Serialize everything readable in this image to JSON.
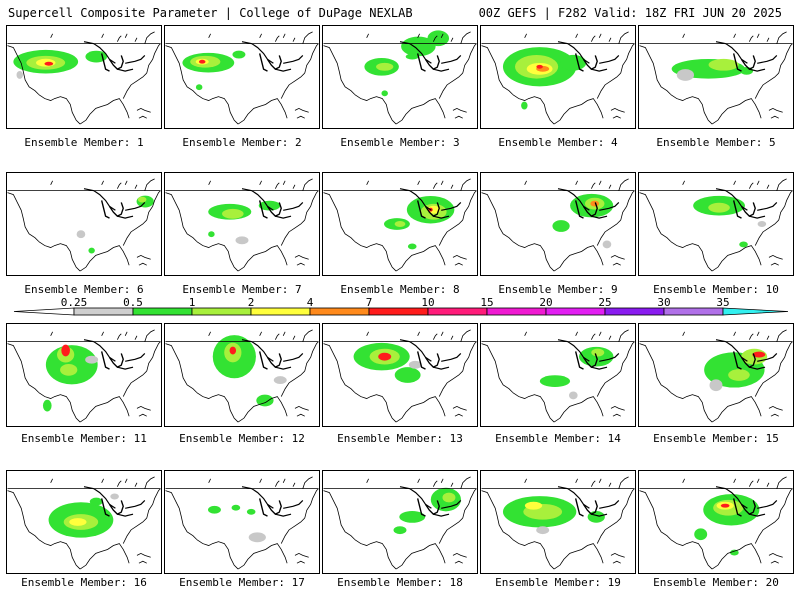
{
  "header": {
    "title_left": "Supercell Composite Parameter | College of DuPage NEXLAB",
    "title_right": "00Z GEFS | F282 Valid: 18Z FRI JUN 20 2025"
  },
  "member_label_prefix": "Ensemble Member:",
  "members": [
    {
      "id": "1",
      "blobs": [
        [
          25,
          35,
          30,
          12,
          1
        ],
        [
          25,
          36,
          18,
          7,
          2
        ],
        [
          25,
          36,
          9,
          4,
          3
        ],
        [
          27,
          37,
          4,
          2,
          5
        ],
        [
          58,
          30,
          10,
          6,
          1
        ],
        [
          8,
          48,
          3,
          4,
          0
        ]
      ]
    },
    {
      "id": "2",
      "blobs": [
        [
          28,
          36,
          24,
          10,
          1
        ],
        [
          26,
          35,
          14,
          6,
          2
        ],
        [
          24,
          35,
          6,
          3,
          3
        ],
        [
          24,
          35,
          3,
          2,
          5
        ],
        [
          48,
          28,
          6,
          4,
          1
        ],
        [
          22,
          60,
          3,
          3,
          1
        ]
      ]
    },
    {
      "id": "3",
      "blobs": [
        [
          38,
          40,
          16,
          9,
          1
        ],
        [
          62,
          20,
          16,
          10,
          1
        ],
        [
          75,
          12,
          10,
          8,
          1
        ],
        [
          40,
          40,
          8,
          4,
          2
        ],
        [
          58,
          30,
          6,
          3,
          1
        ],
        [
          40,
          66,
          3,
          3,
          1
        ]
      ]
    },
    {
      "id": "4",
      "blobs": [
        [
          38,
          40,
          34,
          20,
          1
        ],
        [
          36,
          40,
          20,
          12,
          2
        ],
        [
          38,
          42,
          12,
          6,
          3
        ],
        [
          40,
          42,
          6,
          3,
          4
        ],
        [
          38,
          40,
          3,
          2,
          5
        ],
        [
          60,
          36,
          12,
          8,
          1
        ],
        [
          28,
          78,
          3,
          4,
          1
        ]
      ]
    },
    {
      "id": "5",
      "blobs": [
        [
          45,
          42,
          34,
          10,
          1
        ],
        [
          55,
          38,
          14,
          6,
          2
        ],
        [
          70,
          44,
          6,
          4,
          1
        ],
        [
          30,
          48,
          8,
          6,
          0
        ]
      ]
    },
    {
      "id": "6",
      "blobs": [
        [
          90,
          28,
          8,
          6,
          1
        ],
        [
          88,
          26,
          4,
          3,
          2
        ],
        [
          48,
          60,
          4,
          4,
          0
        ],
        [
          55,
          76,
          3,
          3,
          1
        ]
      ]
    },
    {
      "id": "7",
      "blobs": [
        [
          42,
          38,
          20,
          8,
          1
        ],
        [
          44,
          40,
          10,
          5,
          2
        ],
        [
          68,
          32,
          10,
          5,
          1
        ],
        [
          30,
          60,
          3,
          3,
          1
        ],
        [
          50,
          66,
          6,
          4,
          0
        ]
      ]
    },
    {
      "id": "8",
      "blobs": [
        [
          70,
          36,
          22,
          14,
          1
        ],
        [
          72,
          38,
          12,
          8,
          2
        ],
        [
          72,
          36,
          6,
          4,
          3
        ],
        [
          70,
          36,
          2,
          2,
          5
        ],
        [
          48,
          50,
          12,
          6,
          1
        ],
        [
          50,
          50,
          5,
          3,
          2
        ],
        [
          58,
          72,
          4,
          3,
          1
        ]
      ]
    },
    {
      "id": "9",
      "blobs": [
        [
          72,
          32,
          20,
          12,
          1
        ],
        [
          74,
          30,
          9,
          6,
          2
        ],
        [
          74,
          30,
          4,
          3,
          4
        ],
        [
          52,
          52,
          8,
          6,
          1
        ],
        [
          82,
          70,
          4,
          4,
          0
        ]
      ]
    },
    {
      "id": "10",
      "blobs": [
        [
          52,
          32,
          24,
          10,
          1
        ],
        [
          52,
          34,
          10,
          5,
          2
        ],
        [
          68,
          70,
          4,
          3,
          1
        ],
        [
          80,
          50,
          4,
          3,
          0
        ]
      ]
    },
    {
      "id": "11",
      "blobs": [
        [
          42,
          40,
          24,
          20,
          1
        ],
        [
          38,
          30,
          8,
          8,
          2
        ],
        [
          38,
          26,
          4,
          6,
          5
        ],
        [
          40,
          45,
          8,
          6,
          2
        ],
        [
          26,
          80,
          4,
          6,
          1
        ],
        [
          55,
          35,
          6,
          4,
          0
        ]
      ]
    },
    {
      "id": "12",
      "blobs": [
        [
          45,
          32,
          20,
          22,
          1
        ],
        [
          44,
          28,
          8,
          10,
          2
        ],
        [
          44,
          26,
          3,
          4,
          5
        ],
        [
          65,
          75,
          8,
          6,
          1
        ],
        [
          75,
          55,
          6,
          4,
          0
        ]
      ]
    },
    {
      "id": "13",
      "blobs": [
        [
          38,
          32,
          26,
          14,
          1
        ],
        [
          40,
          32,
          14,
          8,
          2
        ],
        [
          40,
          32,
          6,
          4,
          5
        ],
        [
          55,
          50,
          12,
          8,
          1
        ],
        [
          60,
          40,
          6,
          4,
          0
        ]
      ]
    },
    {
      "id": "14",
      "blobs": [
        [
          75,
          32,
          16,
          10,
          1
        ],
        [
          76,
          28,
          6,
          4,
          2
        ],
        [
          48,
          56,
          14,
          6,
          1
        ],
        [
          60,
          70,
          4,
          4,
          0
        ]
      ]
    },
    {
      "id": "15",
      "blobs": [
        [
          62,
          45,
          28,
          18,
          1
        ],
        [
          75,
          32,
          12,
          8,
          2
        ],
        [
          78,
          30,
          6,
          3,
          5
        ],
        [
          65,
          50,
          10,
          6,
          2
        ],
        [
          50,
          60,
          6,
          6,
          0
        ]
      ]
    },
    {
      "id": "16",
      "blobs": [
        [
          48,
          48,
          30,
          18,
          1
        ],
        [
          48,
          50,
          16,
          8,
          2
        ],
        [
          46,
          50,
          8,
          4,
          3
        ],
        [
          58,
          30,
          6,
          4,
          1
        ],
        [
          70,
          25,
          4,
          3,
          0
        ]
      ]
    },
    {
      "id": "17",
      "blobs": [
        [
          32,
          38,
          6,
          4,
          1
        ],
        [
          56,
          40,
          4,
          3,
          1
        ],
        [
          60,
          65,
          8,
          5,
          0
        ],
        [
          46,
          36,
          4,
          3,
          1
        ]
      ]
    },
    {
      "id": "18",
      "blobs": [
        [
          80,
          28,
          14,
          12,
          1
        ],
        [
          82,
          26,
          6,
          5,
          2
        ],
        [
          58,
          45,
          12,
          6,
          1
        ],
        [
          50,
          58,
          6,
          4,
          1
        ]
      ]
    },
    {
      "id": "19",
      "blobs": [
        [
          38,
          40,
          34,
          16,
          1
        ],
        [
          40,
          40,
          18,
          8,
          2
        ],
        [
          34,
          34,
          8,
          4,
          3
        ],
        [
          75,
          45,
          8,
          6,
          1
        ],
        [
          40,
          58,
          6,
          4,
          0
        ]
      ]
    },
    {
      "id": "20",
      "blobs": [
        [
          60,
          38,
          26,
          16,
          1
        ],
        [
          58,
          36,
          14,
          8,
          2
        ],
        [
          56,
          34,
          8,
          4,
          3
        ],
        [
          56,
          34,
          4,
          2,
          5
        ],
        [
          40,
          62,
          6,
          6,
          1
        ],
        [
          62,
          80,
          4,
          3,
          1
        ]
      ]
    }
  ],
  "colorbar": {
    "ticks": [
      "0.25",
      "0.5",
      "1",
      "2",
      "4",
      "7",
      "10",
      "15",
      "20",
      "25",
      "30",
      "35"
    ],
    "colors": [
      "#cfcfcf",
      "#33e233",
      "#a8f03c",
      "#ffff3c",
      "#ff8a1c",
      "#ff1c1c",
      "#ff1c7a",
      "#f01ad2",
      "#e21ef2",
      "#8a1cf0",
      "#b070e8",
      "#33f0f0"
    ]
  },
  "map_colors": {
    "gray": "#c8c8c8",
    "green": "#33e233",
    "lime": "#a8f03c",
    "yellow": "#ffff3c",
    "orange": "#ff8a1c",
    "red": "#ff1c1c"
  }
}
